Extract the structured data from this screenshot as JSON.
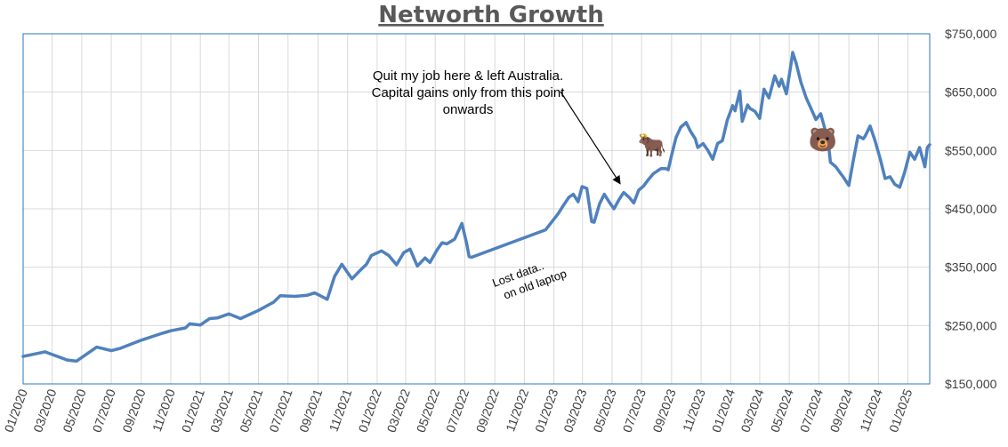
{
  "chart_data": {
    "type": "line",
    "title": "Networth Growth",
    "xlabel": "",
    "ylabel": "",
    "ylim": [
      150000,
      750000
    ],
    "xlim": [
      "2020-01-01",
      "2025-02-15"
    ],
    "grid": true,
    "y_axis_side": "right",
    "y_ticks": [
      150000,
      250000,
      350000,
      450000,
      550000,
      650000,
      750000
    ],
    "y_tick_labels": [
      "$150,000",
      "$250,000",
      "$350,000",
      "$450,000",
      "$550,000",
      "$650,000",
      "$750,000"
    ],
    "x_tick_dates": [
      "2020-01-01",
      "2020-03-01",
      "2020-05-01",
      "2020-07-01",
      "2020-09-01",
      "2020-11-01",
      "2021-01-01",
      "2021-03-01",
      "2021-05-01",
      "2021-07-01",
      "2021-09-01",
      "2021-11-01",
      "2022-01-01",
      "2022-03-01",
      "2022-05-01",
      "2022-07-01",
      "2022-09-01",
      "2022-11-01",
      "2023-01-01",
      "2023-03-01",
      "2023-05-01",
      "2023-07-01",
      "2023-09-01",
      "2023-11-01",
      "2024-01-01",
      "2024-03-01",
      "2024-05-01",
      "2024-07-01",
      "2024-09-01",
      "2024-11-01",
      "2025-01-01"
    ],
    "x_tick_labels": [
      "01/2020",
      "03/2020",
      "05/2020",
      "07/2020",
      "09/2020",
      "11/2020",
      "01/2021",
      "03/2021",
      "05/2021",
      "07/2021",
      "09/2021",
      "11/2021",
      "01/2022",
      "03/2022",
      "05/2022",
      "07/2022",
      "09/2022",
      "11/2022",
      "01/2023",
      "03/2023",
      "05/2023",
      "07/2023",
      "09/2023",
      "11/2023",
      "01/2024",
      "03/2024",
      "05/2024",
      "07/2024",
      "09/2024",
      "11/2024",
      "01/2025"
    ],
    "series": [
      {
        "name": "",
        "color": "#4f81bd",
        "x": [
          "2020-01-01",
          "2020-02-15",
          "2020-04-01",
          "2020-04-20",
          "2020-06-01",
          "2020-07-01",
          "2020-07-20",
          "2020-09-01",
          "2020-10-15",
          "2020-11-01",
          "2020-12-01",
          "2020-12-10",
          "2021-01-01",
          "2021-01-20",
          "2021-02-05",
          "2021-03-01",
          "2021-03-25",
          "2021-04-10",
          "2021-05-01",
          "2021-06-01",
          "2021-06-15",
          "2021-07-15",
          "2021-08-10",
          "2021-08-25",
          "2021-09-20",
          "2021-10-05",
          "2021-10-20",
          "2021-11-10",
          "2021-11-25",
          "2021-12-10",
          "2021-12-20",
          "2022-01-10",
          "2022-01-25",
          "2022-02-10",
          "2022-02-25",
          "2022-03-10",
          "2022-03-25",
          "2022-04-10",
          "2022-04-20",
          "2022-05-05",
          "2022-05-15",
          "2022-05-25",
          "2022-06-10",
          "2022-06-25",
          "2022-07-05",
          "2022-07-10",
          "2022-07-15",
          "2022-12-15",
          "2023-01-10",
          "2023-01-20",
          "2023-02-01",
          "2023-02-10",
          "2023-02-20",
          "2023-02-28",
          "2023-03-10",
          "2023-03-20",
          "2023-03-25",
          "2023-04-05",
          "2023-04-15",
          "2023-04-25",
          "2023-05-05",
          "2023-05-15",
          "2023-05-25",
          "2023-06-05",
          "2023-06-15",
          "2023-06-25",
          "2023-07-05",
          "2023-07-15",
          "2023-07-25",
          "2023-08-10",
          "2023-08-20",
          "2023-08-25",
          "2023-09-01",
          "2023-09-10",
          "2023-09-20",
          "2023-10-01",
          "2023-10-10",
          "2023-10-20",
          "2023-10-25",
          "2023-11-05",
          "2023-11-15",
          "2023-11-25",
          "2023-12-05",
          "2023-12-15",
          "2023-12-25",
          "2024-01-05",
          "2024-01-10",
          "2024-01-20",
          "2024-01-25",
          "2024-02-05",
          "2024-02-10",
          "2024-02-20",
          "2024-03-01",
          "2024-03-10",
          "2024-03-20",
          "2024-04-01",
          "2024-04-10",
          "2024-04-15",
          "2024-04-25",
          "2024-05-05",
          "2024-05-08",
          "2024-05-15",
          "2024-05-25",
          "2024-06-05",
          "2024-06-15",
          "2024-06-25",
          "2024-07-05",
          "2024-07-10",
          "2024-07-20",
          "2024-07-25",
          "2024-08-05",
          "2024-08-20",
          "2024-09-01",
          "2024-09-10",
          "2024-09-20",
          "2024-10-01",
          "2024-10-05",
          "2024-10-15",
          "2024-10-25",
          "2024-11-05",
          "2024-11-15",
          "2024-11-25",
          "2024-12-05",
          "2024-12-15",
          "2024-12-25",
          "2025-01-05",
          "2025-01-15",
          "2025-01-25",
          "2025-02-05",
          "2025-02-10",
          "2025-02-15"
        ],
        "values": [
          197000,
          205000,
          191000,
          189000,
          213000,
          207000,
          211000,
          225000,
          237000,
          241000,
          246000,
          253000,
          251000,
          262000,
          263000,
          270000,
          262000,
          268000,
          276000,
          290000,
          301000,
          300000,
          302000,
          306000,
          295000,
          334000,
          355000,
          330000,
          343000,
          355000,
          370000,
          378000,
          370000,
          354000,
          375000,
          381000,
          352000,
          366000,
          358000,
          380000,
          392000,
          390000,
          398000,
          425000,
          390000,
          368000,
          367000,
          414000,
          442000,
          455000,
          470000,
          475000,
          462000,
          488000,
          485000,
          428000,
          427000,
          458000,
          475000,
          462000,
          450000,
          465000,
          478000,
          470000,
          460000,
          482000,
          489000,
          500000,
          510000,
          519000,
          519000,
          517000,
          542000,
          572000,
          590000,
          598000,
          583000,
          570000,
          555000,
          562000,
          550000,
          535000,
          562000,
          567000,
          602000,
          627000,
          618000,
          652000,
          600000,
          628000,
          622000,
          617000,
          605000,
          655000,
          640000,
          678000,
          660000,
          672000,
          647000,
          700000,
          718000,
          700000,
          667000,
          640000,
          622000,
          603000,
          613000,
          598000,
          568000,
          530000,
          522000,
          505000,
          490000,
          532000,
          575000,
          570000,
          575000,
          592000,
          567000,
          535000,
          502000,
          505000,
          492000,
          487000,
          512000,
          547000,
          535000,
          555000,
          522000,
          555000,
          560000
        ]
      }
    ],
    "annotations": [
      {
        "lines": [
          "Quit my job here & left Australia.",
          "Capital gains only from this point",
          "onwards"
        ],
        "arrow_to": [
          "2023-05-25",
          475000
        ]
      },
      {
        "lines": [
          "Lost data..",
          "on old laptop"
        ],
        "near": [
          "2022-09-15",
          362000
        ],
        "rotation_deg": -20
      }
    ],
    "markers": [
      {
        "icon": "bull-icon",
        "glyph": "🐂",
        "near": [
          "2023-08-01",
          560000
        ]
      },
      {
        "icon": "bear-icon",
        "glyph": "🐻",
        "near": [
          "2024-06-01",
          560000
        ]
      }
    ]
  }
}
